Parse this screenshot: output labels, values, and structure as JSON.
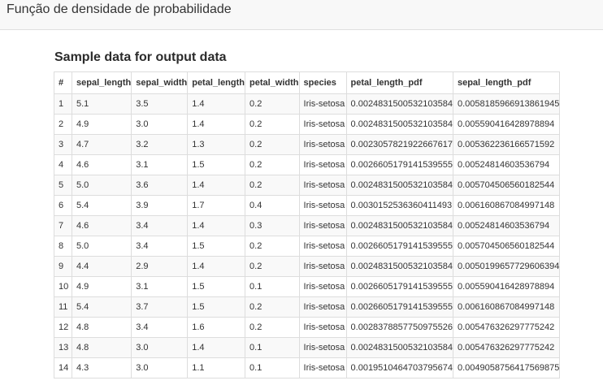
{
  "header": {
    "title": "Função de densidade de probabilidade"
  },
  "section": {
    "title": "Sample data for output data"
  },
  "table": {
    "columns": [
      "#",
      "sepal_length",
      "sepal_width",
      "petal_length",
      "petal_width",
      "species",
      "petal_length_pdf",
      "sepal_length_pdf"
    ],
    "rows": [
      [
        "1",
        "5.1",
        "3.5",
        "1.4",
        "0.2",
        "Iris-setosa",
        "0.0024831500532103584",
        "0.005818596691386194 5"
      ],
      [
        "2",
        "4.9",
        "3.0",
        "1.4",
        "0.2",
        "Iris-setosa",
        "0.0024831500532103584",
        "0.00559041642897889 4"
      ],
      [
        "3",
        "4.7",
        "3.2",
        "1.3",
        "0.2",
        "Iris-setosa",
        "0.0023057821922667617",
        "0.00536223616657159 2"
      ],
      [
        "4",
        "4.6",
        "3.1",
        "1.5",
        "0.2",
        "Iris-setosa",
        "0.0026605179141539555",
        "0.00524814603536794"
      ],
      [
        "5",
        "5.0",
        "3.6",
        "1.4",
        "0.2",
        "Iris-setosa",
        "0.0024831500532103584",
        "0.00570450656018254 4"
      ],
      [
        "6",
        "5.4",
        "3.9",
        "1.7",
        "0.4",
        "Iris-setosa",
        "0.0030152536360411493",
        "0.00616086708499714 8"
      ],
      [
        "7",
        "4.6",
        "3.4",
        "1.4",
        "0.3",
        "Iris-setosa",
        "0.0024831500532103584",
        "0.00524814603536794"
      ],
      [
        "8",
        "5.0",
        "3.4",
        "1.5",
        "0.2",
        "Iris-setosa",
        "0.0026605179141539555",
        "0.00570450656018254 4"
      ],
      [
        "9",
        "4.4",
        "2.9",
        "1.4",
        "0.2",
        "Iris-setosa",
        "0.0024831500532103584",
        "0.00501996577296063 94"
      ],
      [
        "10",
        "4.9",
        "3.1",
        "1.5",
        "0.1",
        "Iris-setosa",
        "0.0026605179141539555",
        "0.00559041642897889 4"
      ],
      [
        "11",
        "5.4",
        "3.7",
        "1.5",
        "0.2",
        "Iris-setosa",
        "0.0026605179141539555",
        "0.00616086708499714 8"
      ],
      [
        "12",
        "4.8",
        "3.4",
        "1.6",
        "0.2",
        "Iris-setosa",
        "0.0028378857750975526",
        "0.00547632629777524 2"
      ],
      [
        "13",
        "4.8",
        "3.0",
        "1.4",
        "0.1",
        "Iris-setosa",
        "0.0024831500532103584",
        "0.00547632629777524 2"
      ],
      [
        "14",
        "4.3",
        "3.0",
        "1.1",
        "0.1",
        "Iris-setosa",
        "0.0019510464703795674",
        "0.00490587564175698 75"
      ]
    ]
  }
}
